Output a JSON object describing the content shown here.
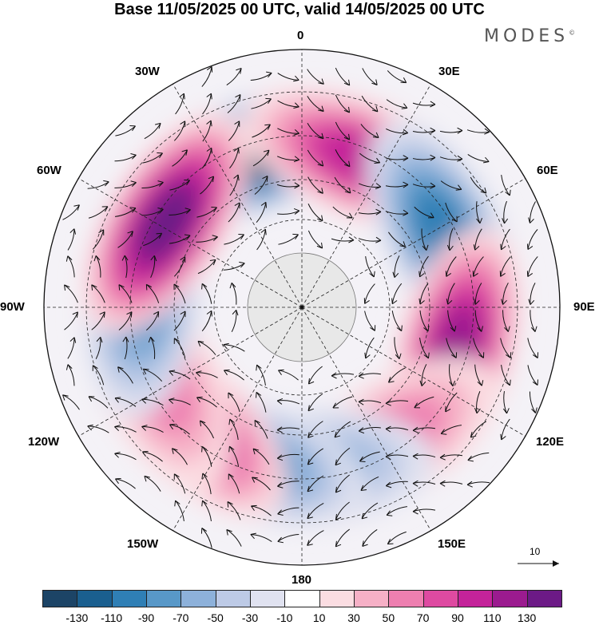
{
  "title": "Base 11/05/2025 00 UTC, valid 14/05/2025 00 UTC",
  "brand": "MODES",
  "brand_mark": "©",
  "longitude_labels": {
    "lon_0": "0",
    "lon_30e": "30E",
    "lon_60e": "60E",
    "lon_90e": "90E",
    "lon_120e": "120E",
    "lon_150e": "150E",
    "lon_180": "180",
    "lon_150w": "150W",
    "lon_120w": "120W",
    "lon_90w": "90W",
    "lon_60w": "60W",
    "lon_30w": "30W"
  },
  "reference_vector": "10",
  "colorbar": {
    "colors": [
      "#1c4466",
      "#1a5f8f",
      "#2f7fb5",
      "#5898c8",
      "#8db1da",
      "#bdcae6",
      "#e0e2f0",
      "#ffffff",
      "#fbdde2",
      "#f6b0c6",
      "#ee7fb0",
      "#de4aa1",
      "#c4239a",
      "#9b1b8f",
      "#6c1a86"
    ],
    "tick_labels": [
      "-130",
      "-110",
      "-90",
      "-70",
      "-50",
      "-30",
      "-10",
      "10",
      "30",
      "50",
      "70",
      "90",
      "110",
      "130"
    ]
  },
  "anomaly_centers": [
    {
      "lon": -18,
      "sign": "negative",
      "level": 6
    },
    {
      "lon": 22,
      "sign": "positive",
      "level": 4
    },
    {
      "lon": 63,
      "sign": "negative",
      "level": 4
    },
    {
      "lon": 105,
      "sign": "positive",
      "level": 5
    },
    {
      "lon": 147,
      "sign": "positive",
      "level": 2
    },
    {
      "lon": 177,
      "sign": "negative",
      "level": 2
    },
    {
      "lon": -160,
      "sign": "negative",
      "level": 3
    },
    {
      "lon": -135,
      "sign": "positive",
      "level": 4
    },
    {
      "lon": -115,
      "sign": "positive",
      "level": 2
    },
    {
      "lon": -85,
      "sign": "negative",
      "level": 3
    },
    {
      "lon": -58,
      "sign": "positive",
      "level": 6
    }
  ]
}
